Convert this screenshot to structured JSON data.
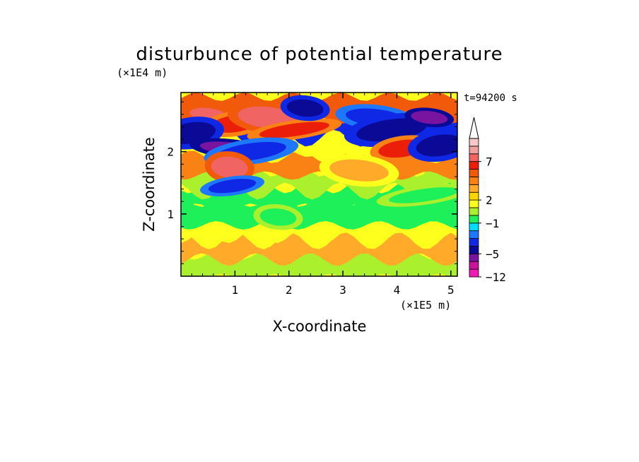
{
  "chart_data": {
    "type": "heatmap",
    "title": "disturbunce of potential temperature",
    "xlabel": "X-coordinate",
    "ylabel": "Z-coordinate",
    "x_unit": "(×1E5 m)",
    "y_unit": "(×1E4 m)",
    "time_label": "t=94200 s",
    "xlim": [
      0,
      5.12
    ],
    "ylim": [
      0,
      2.95
    ],
    "x_ticks": [
      1,
      2,
      3,
      4,
      5
    ],
    "y_ticks": [
      1,
      2
    ],
    "x_tick_labels": [
      "1",
      "2",
      "3",
      "4",
      "5"
    ],
    "y_tick_labels": [
      "1",
      "2"
    ],
    "colorbar": {
      "levels": [
        -12,
        -10,
        -7,
        -5,
        -4,
        -3,
        -2,
        -1,
        0,
        1,
        2,
        3,
        4,
        5,
        6,
        7,
        8,
        9,
        10
      ],
      "labels": [
        {
          "value": 7,
          "text": "7"
        },
        {
          "value": 2,
          "text": "2"
        },
        {
          "value": -1,
          "text": "−1"
        },
        {
          "value": -5,
          "text": "−5"
        },
        {
          "value": -12,
          "text": "−12"
        }
      ],
      "colors": [
        "#f01ab4",
        "#c8149b",
        "#7814a0",
        "#0a0a96",
        "#0f28e6",
        "#1e78ff",
        "#00dcff",
        "#1ef05a",
        "#aaf02d",
        "#ffff1e",
        "#ffd700",
        "#ffaa28",
        "#fa8214",
        "#f05a0a",
        "#eb1e0a",
        "#f06464",
        "#f0a0a0",
        "#f8c8c8"
      ],
      "extend": "max"
    },
    "bands": [
      {
        "z": 0.15,
        "value": 0.5
      },
      {
        "z": 0.45,
        "value": 3.5
      },
      {
        "z": 0.75,
        "value": 1.5
      },
      {
        "z": 1.0,
        "value": -0.5
      },
      {
        "z": 1.25,
        "value": -0.5
      },
      {
        "z": 1.55,
        "value": 0.5
      },
      {
        "z": 1.8,
        "value": 4.5
      },
      {
        "z": 2.1,
        "value": 1.0
      },
      {
        "z": 2.4,
        "value": -4.0
      },
      {
        "z": 2.7,
        "value": 5.0
      }
    ],
    "features": [
      {
        "x": 0.5,
        "z": 2.6,
        "value": 7
      },
      {
        "x": 1.0,
        "z": 2.45,
        "value": 6
      },
      {
        "x": 1.6,
        "z": 2.55,
        "value": 7
      },
      {
        "x": 2.1,
        "z": 2.35,
        "value": 6
      },
      {
        "x": 2.3,
        "z": 2.7,
        "value": -5
      },
      {
        "x": 0.2,
        "z": 2.3,
        "value": -5
      },
      {
        "x": 0.9,
        "z": 2.05,
        "value": -6
      },
      {
        "x": 1.3,
        "z": 2.0,
        "value": -4
      },
      {
        "x": 0.9,
        "z": 1.75,
        "value": 7
      },
      {
        "x": 0.95,
        "z": 1.45,
        "value": -4
      },
      {
        "x": 3.6,
        "z": 2.55,
        "value": -4
      },
      {
        "x": 3.9,
        "z": 2.35,
        "value": -5
      },
      {
        "x": 4.6,
        "z": 2.55,
        "value": -6
      },
      {
        "x": 4.1,
        "z": 2.05,
        "value": 6
      },
      {
        "x": 3.3,
        "z": 1.7,
        "value": 3
      },
      {
        "x": 4.5,
        "z": 1.3,
        "value": -1
      },
      {
        "x": 1.8,
        "z": 0.95,
        "value": -1
      },
      {
        "x": 4.8,
        "z": 2.1,
        "value": -5
      }
    ]
  }
}
